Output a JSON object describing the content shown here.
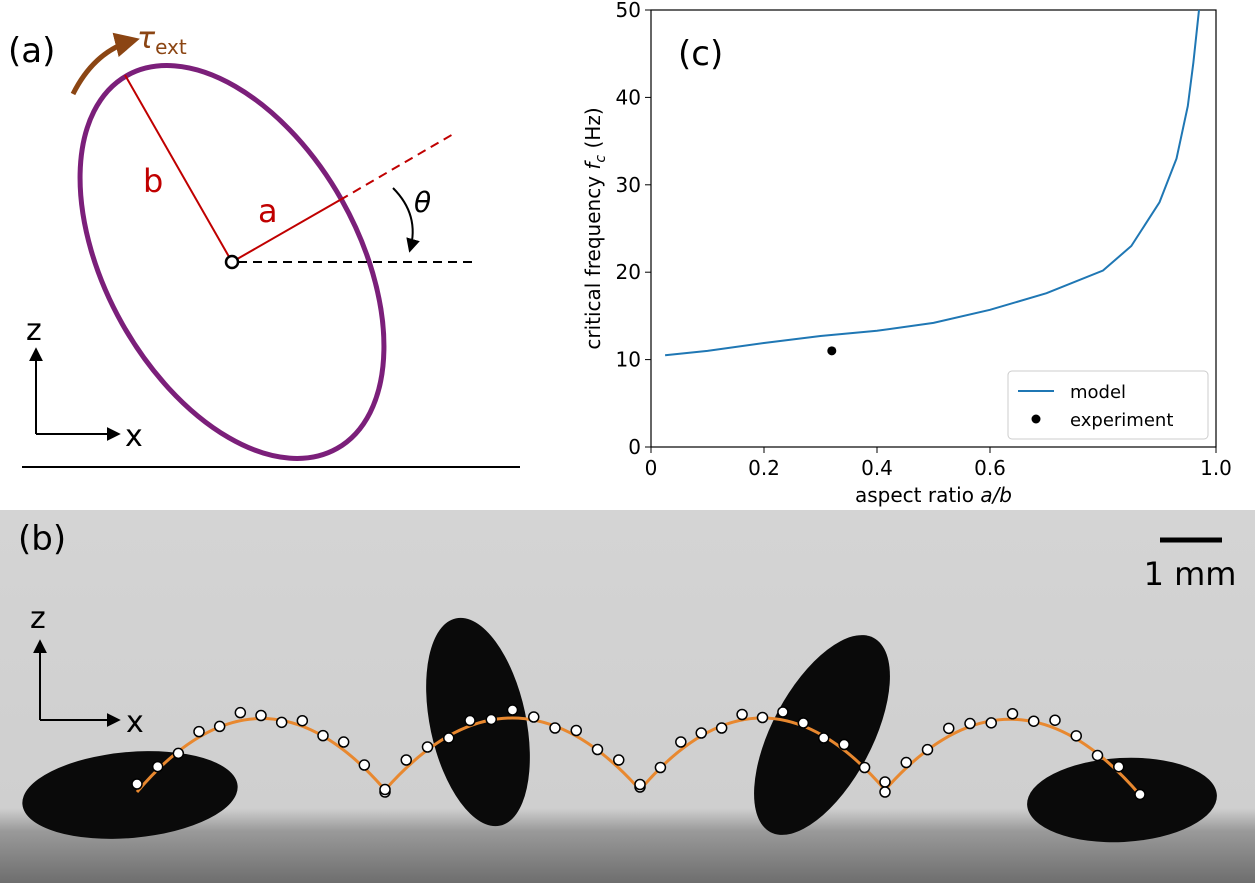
{
  "panels": {
    "a": {
      "label": "(a)",
      "torque": {
        "symbol": "τ",
        "subscript": "ext"
      },
      "b": "b",
      "a": "a",
      "theta": "θ",
      "z": "z",
      "x": "x"
    },
    "b": {
      "label": "(b)",
      "scale": "1 mm",
      "z": "z",
      "x": "x"
    }
  },
  "chart_data": {
    "type": "line",
    "panel_label": "(c)",
    "xlabel": {
      "text": "aspect ratio ",
      "var": "a/b"
    },
    "ylabel": {
      "text": "critical frequency ",
      "var": "f",
      "sub": "c",
      "unit": " (Hz)"
    },
    "xlim": [
      0,
      1
    ],
    "ylim": [
      0,
      50
    ],
    "xticks": [
      0,
      0.2,
      0.4,
      0.6,
      {
        "value": 1,
        "label": "1.0"
      }
    ],
    "yticks": [
      0,
      10,
      20,
      30,
      40,
      50
    ],
    "legend": "lower right",
    "series": [
      {
        "name": "model",
        "color": "#1f77b4",
        "x": [
          0.025,
          0.1,
          0.2,
          0.3,
          0.4,
          0.5,
          0.6,
          0.7,
          0.8,
          0.85,
          0.9,
          0.93,
          0.95,
          0.96,
          0.97
        ],
        "values": [
          10.5,
          11,
          11.9,
          12.7,
          13.3,
          14.2,
          15.7,
          17.6,
          20.2,
          23,
          28,
          33,
          39,
          44,
          50
        ]
      },
      {
        "name": "experiment",
        "color": "#000000",
        "marker": true,
        "x": [
          0.32
        ],
        "values": [
          11
        ]
      }
    ]
  }
}
